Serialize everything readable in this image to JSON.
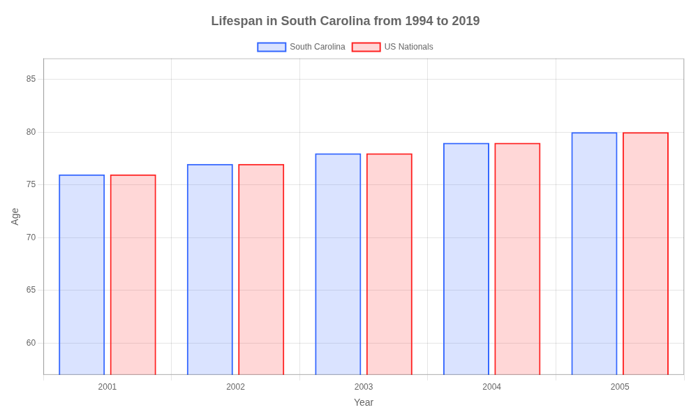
{
  "chart_data": {
    "type": "bar",
    "title": "Lifespan in South Carolina from 1994 to 2019",
    "x_label": "Year",
    "y_label": "Age",
    "categories": [
      "2001",
      "2002",
      "2003",
      "2004",
      "2005"
    ],
    "series": [
      {
        "name": "South Carolina",
        "color": "#3366ff",
        "values": [
          76,
          77,
          78,
          79,
          80
        ]
      },
      {
        "name": "US Nationals",
        "color": "#ff2222",
        "values": [
          76,
          77,
          78,
          79,
          80
        ]
      }
    ],
    "ylim": [
      57,
      87
    ],
    "yticks": [
      60,
      65,
      70,
      75,
      80,
      85
    ],
    "grid": true,
    "legend": "top"
  }
}
